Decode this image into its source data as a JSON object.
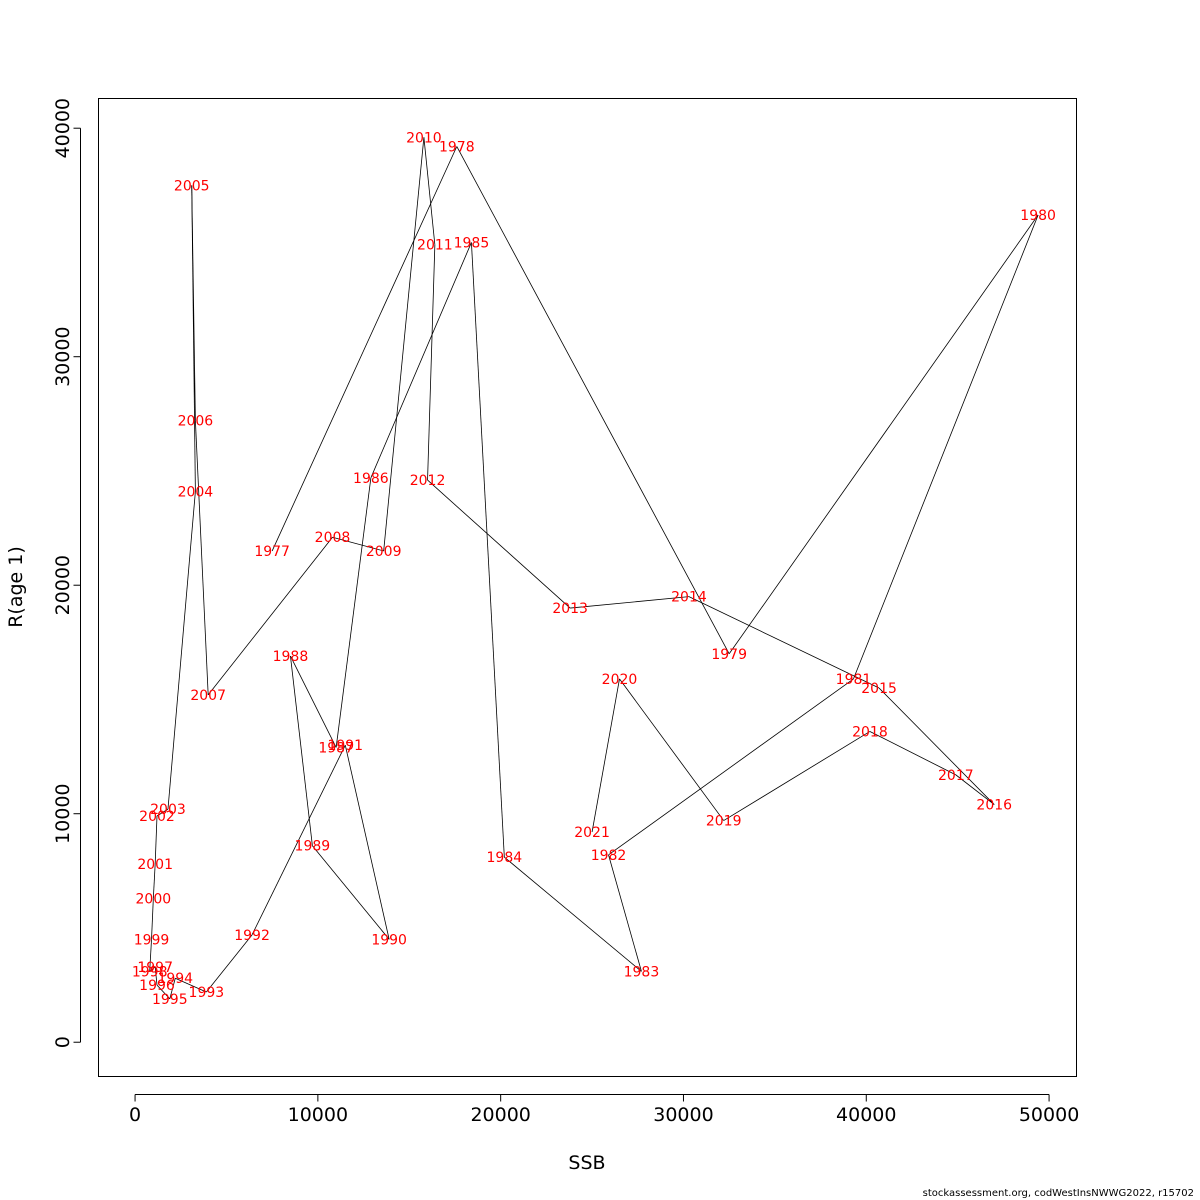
{
  "chart_data": {
    "type": "line",
    "xlabel": "SSB",
    "ylabel": "R(age 1)",
    "xlim": [
      -2000,
      51500
    ],
    "ylim": [
      -1500,
      41300
    ],
    "xticks": [
      0,
      10000,
      20000,
      30000,
      40000,
      50000
    ],
    "yticks": [
      0,
      10000,
      20000,
      30000,
      40000
    ],
    "grid": false,
    "line_color": "#000000",
    "label_color": "#ff0000",
    "points": [
      {
        "year": "1977",
        "x": 7500,
        "y": 21500
      },
      {
        "year": "1978",
        "x": 17600,
        "y": 39200
      },
      {
        "year": "1979",
        "x": 32500,
        "y": 17000
      },
      {
        "year": "1980",
        "x": 49400,
        "y": 36200
      },
      {
        "year": "1981",
        "x": 39300,
        "y": 15900
      },
      {
        "year": "1982",
        "x": 25900,
        "y": 8200
      },
      {
        "year": "1983",
        "x": 27700,
        "y": 3100
      },
      {
        "year": "1984",
        "x": 20200,
        "y": 8100
      },
      {
        "year": "1985",
        "x": 18400,
        "y": 35000
      },
      {
        "year": "1986",
        "x": 12900,
        "y": 24700
      },
      {
        "year": "1987",
        "x": 11000,
        "y": 12900
      },
      {
        "year": "1988",
        "x": 8500,
        "y": 16900
      },
      {
        "year": "1989",
        "x": 9700,
        "y": 8600
      },
      {
        "year": "1990",
        "x": 13900,
        "y": 4500
      },
      {
        "year": "1991",
        "x": 11500,
        "y": 13000
      },
      {
        "year": "1992",
        "x": 6400,
        "y": 4700
      },
      {
        "year": "1993",
        "x": 3900,
        "y": 2200
      },
      {
        "year": "1994",
        "x": 2200,
        "y": 2800
      },
      {
        "year": "1995",
        "x": 1900,
        "y": 1900
      },
      {
        "year": "1996",
        "x": 1200,
        "y": 2500
      },
      {
        "year": "1997",
        "x": 1100,
        "y": 3300
      },
      {
        "year": "1998",
        "x": 800,
        "y": 3100
      },
      {
        "year": "1999",
        "x": 900,
        "y": 4500
      },
      {
        "year": "2000",
        "x": 1000,
        "y": 6300
      },
      {
        "year": "2001",
        "x": 1100,
        "y": 7800
      },
      {
        "year": "2002",
        "x": 1200,
        "y": 9900
      },
      {
        "year": "2003",
        "x": 1800,
        "y": 10200
      },
      {
        "year": "2004",
        "x": 3300,
        "y": 24100
      },
      {
        "year": "2005",
        "x": 3100,
        "y": 37500
      },
      {
        "year": "2006",
        "x": 3300,
        "y": 27200
      },
      {
        "year": "2007",
        "x": 4000,
        "y": 15200
      },
      {
        "year": "2008",
        "x": 10800,
        "y": 22100
      },
      {
        "year": "2009",
        "x": 13600,
        "y": 21500
      },
      {
        "year": "2010",
        "x": 15800,
        "y": 39600
      },
      {
        "year": "2011",
        "x": 16400,
        "y": 34900
      },
      {
        "year": "2012",
        "x": 16000,
        "y": 24600
      },
      {
        "year": "2013",
        "x": 23800,
        "y": 19000
      },
      {
        "year": "2014",
        "x": 30300,
        "y": 19500
      },
      {
        "year": "2015",
        "x": 40700,
        "y": 15500
      },
      {
        "year": "2016",
        "x": 47000,
        "y": 10400
      },
      {
        "year": "2017",
        "x": 44900,
        "y": 11700
      },
      {
        "year": "2018",
        "x": 40200,
        "y": 13600
      },
      {
        "year": "2019",
        "x": 32200,
        "y": 9700
      },
      {
        "year": "2020",
        "x": 26500,
        "y": 15900
      },
      {
        "year": "2021",
        "x": 25000,
        "y": 9200
      }
    ]
  },
  "footer_text": "stockassessment.org, codWestInsNWWG2022, r15702"
}
